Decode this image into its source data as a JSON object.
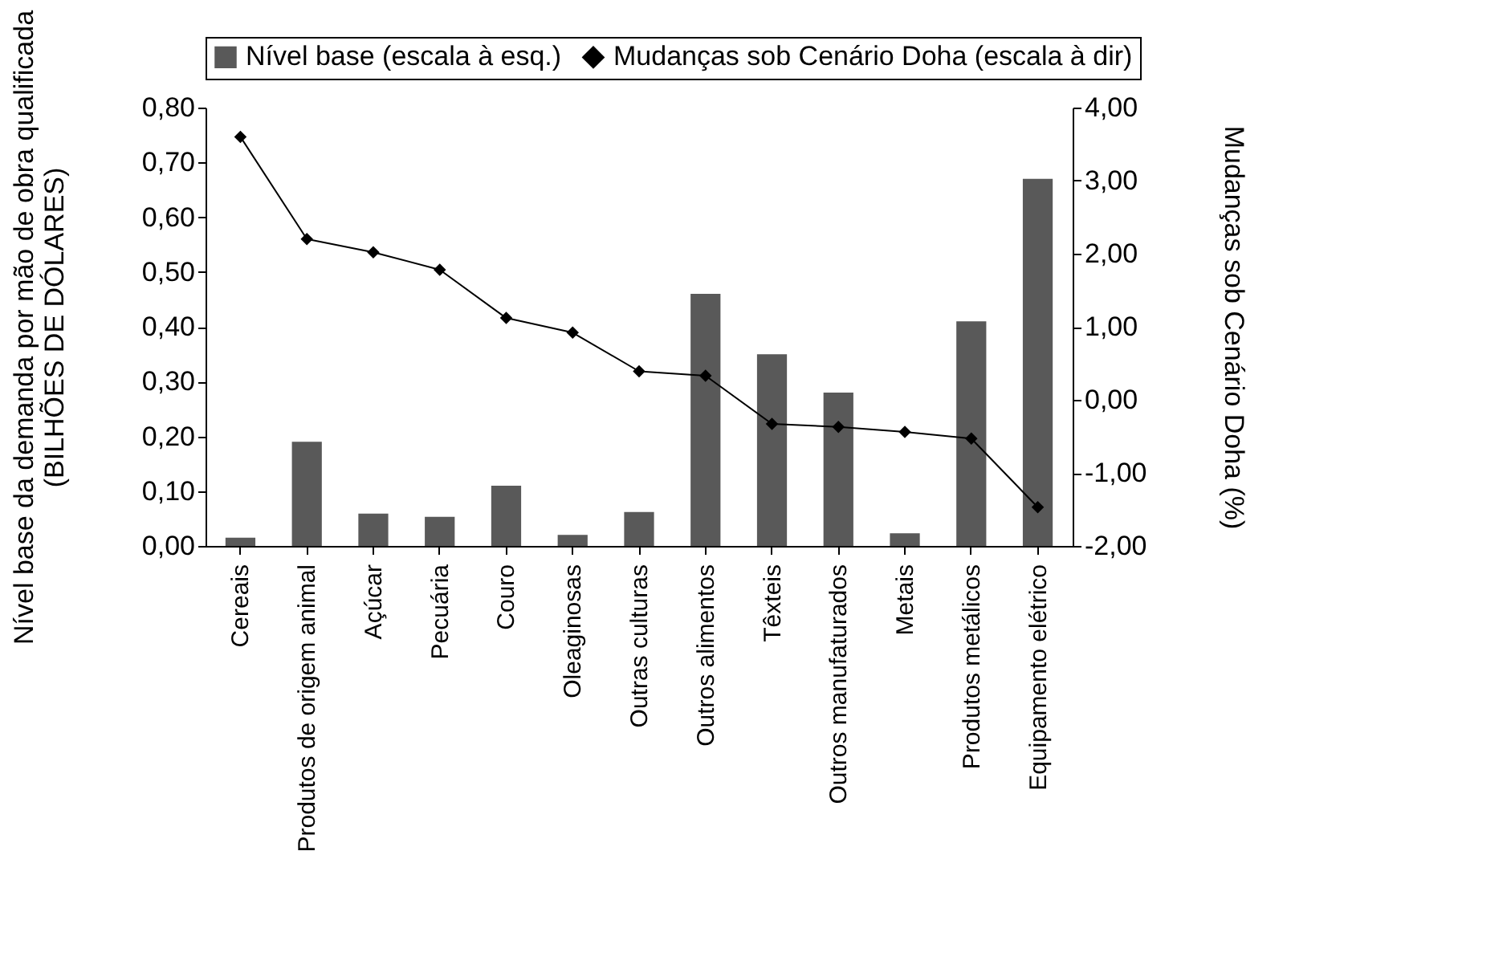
{
  "chart_data": {
    "type": "bar",
    "ylabel": "Nível base da demanda por mão de obra qualificada\n(BILHÕES DE DÓLARES)",
    "y2label": "Mudanças sob Cenário Doha (%)",
    "categories": [
      "Cereais",
      "Produtos de origem animal",
      "Açúcar",
      "Pecuária",
      "Couro",
      "Oleaginosas",
      "Outras culturas",
      "Outros alimentos",
      "Têxteis",
      "Outros manufaturados",
      "Metais",
      "Produtos metálicos",
      "Equipamento elétrico"
    ],
    "series": [
      {
        "name": "Nível base (escala à esq.)",
        "color": "#595959",
        "values": [
          0.015,
          0.19,
          0.059,
          0.053,
          0.11,
          0.02,
          0.062,
          0.46,
          0.35,
          0.28,
          0.023,
          0.41,
          0.67
        ]
      },
      {
        "name": "Mudanças sob Cenário Doha (escala à dir)",
        "type": "line",
        "axis": "y2",
        "color": "#000000",
        "marker": "diamond",
        "values": [
          3.6,
          2.2,
          2.02,
          1.78,
          1.12,
          0.92,
          0.39,
          0.33,
          -0.33,
          -0.37,
          -0.44,
          -0.53,
          -1.47
        ]
      }
    ],
    "ylim": [
      0,
      0.8
    ],
    "yticks": [
      {
        "value": 0,
        "label": "0,00"
      },
      {
        "value": 0.1,
        "label": "0,10"
      },
      {
        "value": 0.2,
        "label": "0,20"
      },
      {
        "value": 0.3,
        "label": "0,30"
      },
      {
        "value": 0.4,
        "label": "0,40"
      },
      {
        "value": 0.5,
        "label": "0,50"
      },
      {
        "value": 0.6,
        "label": "0,60"
      },
      {
        "value": 0.7,
        "label": "0,70"
      },
      {
        "value": 0.8,
        "label": "0,80"
      }
    ],
    "y2lim": [
      -2,
      4
    ],
    "y2ticks": [
      {
        "value": -2,
        "label": "-2,00"
      },
      {
        "value": -1,
        "label": "-1,00"
      },
      {
        "value": 0,
        "label": "0,00"
      },
      {
        "value": 1,
        "label": "1,00"
      },
      {
        "value": 2,
        "label": "2,00"
      },
      {
        "value": 3,
        "label": "3,00"
      },
      {
        "value": 4,
        "label": "4,00"
      }
    ],
    "grid": false,
    "legend": "top"
  }
}
